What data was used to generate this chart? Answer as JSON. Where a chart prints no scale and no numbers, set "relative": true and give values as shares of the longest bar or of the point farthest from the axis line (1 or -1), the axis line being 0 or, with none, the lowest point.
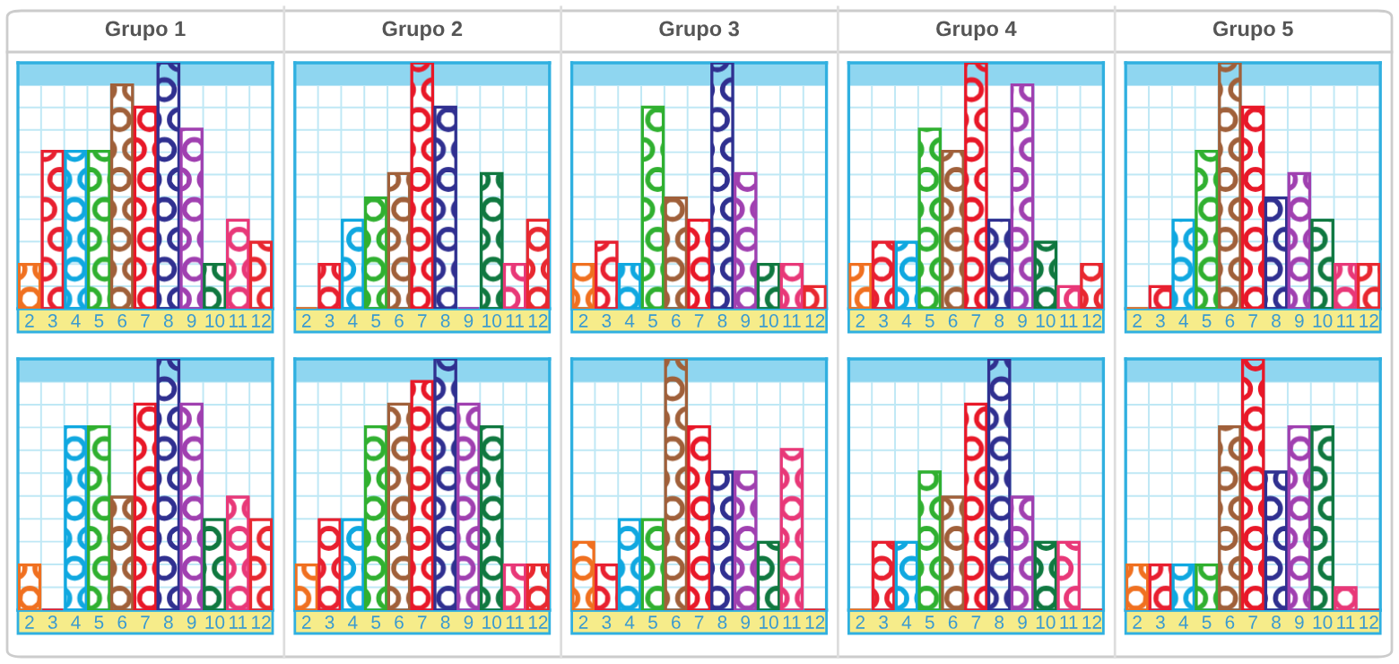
{
  "chart_data": [
    {
      "type": "bar",
      "relative": true,
      "title": "Grupo 1",
      "categories": [
        "2",
        "3",
        "4",
        "5",
        "6",
        "7",
        "8",
        "9",
        "10",
        "11",
        "12"
      ],
      "values": [
        0.18,
        0.64,
        0.64,
        0.64,
        0.91,
        0.82,
        1,
        0.73,
        0.18,
        0.36,
        0.27
      ],
      "colors": [
        "#f07020",
        "#e82030",
        "#10a8e0",
        "#30b030",
        "#a0603a",
        "#e81828",
        "#303090",
        "#a040b0",
        "#107840",
        "#e83878",
        "#e82830"
      ],
      "grid": true
    },
    {
      "type": "bar",
      "relative": true,
      "title": "Grupo 2",
      "categories": [
        "2",
        "3",
        "4",
        "5",
        "6",
        "7",
        "8",
        "9",
        "10",
        "11",
        "12"
      ],
      "values": [
        0,
        0.18,
        0.36,
        0.45,
        0.55,
        1,
        0.82,
        0,
        0.55,
        0.18,
        0.36
      ],
      "colors": [
        "#f07020",
        "#e82030",
        "#10a8e0",
        "#30b030",
        "#a0603a",
        "#e81828",
        "#303090",
        "#a040b0",
        "#107840",
        "#e83878",
        "#e82830"
      ],
      "grid": true
    },
    {
      "type": "bar",
      "relative": true,
      "title": "Grupo 3",
      "categories": [
        "2",
        "3",
        "4",
        "5",
        "6",
        "7",
        "8",
        "9",
        "10",
        "11",
        "12"
      ],
      "values": [
        0.18,
        0.27,
        0.18,
        0.82,
        0.45,
        0.36,
        1,
        0.55,
        0.18,
        0.18,
        0.09
      ],
      "colors": [
        "#f07020",
        "#e82030",
        "#10a8e0",
        "#30b030",
        "#a0603a",
        "#e81828",
        "#303090",
        "#a040b0",
        "#107840",
        "#e83878",
        "#e82830"
      ],
      "grid": true
    },
    {
      "type": "bar",
      "relative": true,
      "title": "Grupo 4",
      "categories": [
        "2",
        "3",
        "4",
        "5",
        "6",
        "7",
        "8",
        "9",
        "10",
        "11",
        "12"
      ],
      "values": [
        0.18,
        0.27,
        0.27,
        0.73,
        0.64,
        1,
        0.36,
        0.91,
        0.27,
        0.09,
        0.18
      ],
      "colors": [
        "#f07020",
        "#e82030",
        "#10a8e0",
        "#30b030",
        "#a0603a",
        "#e81828",
        "#303090",
        "#a040b0",
        "#107840",
        "#e83878",
        "#e82830"
      ],
      "grid": true
    },
    {
      "type": "bar",
      "relative": true,
      "title": "Grupo 5",
      "categories": [
        "2",
        "3",
        "4",
        "5",
        "6",
        "7",
        "8",
        "9",
        "10",
        "11",
        "12"
      ],
      "values": [
        0,
        0.09,
        0.36,
        0.64,
        1,
        0.82,
        0.45,
        0.55,
        0.36,
        0.18,
        0.18
      ],
      "colors": [
        "#f07020",
        "#e82030",
        "#10a8e0",
        "#30b030",
        "#a0603a",
        "#e81828",
        "#303090",
        "#a040b0",
        "#107840",
        "#e83878",
        "#e82830"
      ],
      "grid": true
    },
    {
      "type": "bar",
      "relative": true,
      "categories": [
        "2",
        "3",
        "4",
        "5",
        "6",
        "7",
        "8",
        "9",
        "10",
        "11",
        "12"
      ],
      "values": [
        0.18,
        0,
        0.73,
        0.73,
        0.45,
        0.82,
        1,
        0.82,
        0.36,
        0.45,
        0.36
      ],
      "colors": [
        "#f07020",
        "#e82030",
        "#10a8e0",
        "#30b030",
        "#a0603a",
        "#e81828",
        "#303090",
        "#a040b0",
        "#107840",
        "#e83878",
        "#e82830"
      ],
      "grid": true
    },
    {
      "type": "bar",
      "relative": true,
      "categories": [
        "2",
        "3",
        "4",
        "5",
        "6",
        "7",
        "8",
        "9",
        "10",
        "11",
        "12"
      ],
      "values": [
        0.18,
        0.36,
        0.36,
        0.73,
        0.82,
        0.91,
        1,
        0.82,
        0.73,
        0.18,
        0.18
      ],
      "colors": [
        "#f07020",
        "#e82030",
        "#10a8e0",
        "#30b030",
        "#a0603a",
        "#e81828",
        "#303090",
        "#a040b0",
        "#107840",
        "#e83878",
        "#e82830"
      ],
      "grid": true
    },
    {
      "type": "bar",
      "relative": true,
      "categories": [
        "2",
        "3",
        "4",
        "5",
        "6",
        "7",
        "8",
        "9",
        "10",
        "11",
        "12"
      ],
      "values": [
        0.27,
        0.18,
        0.36,
        0.36,
        1,
        0.73,
        0.55,
        0.55,
        0.27,
        0.64,
        0
      ],
      "colors": [
        "#f07020",
        "#e82030",
        "#10a8e0",
        "#30b030",
        "#a0603a",
        "#e81828",
        "#303090",
        "#a040b0",
        "#107840",
        "#e83878",
        "#e82830"
      ],
      "grid": true
    },
    {
      "type": "bar",
      "relative": true,
      "categories": [
        "2",
        "3",
        "4",
        "5",
        "6",
        "7",
        "8",
        "9",
        "10",
        "11",
        "12"
      ],
      "values": [
        0,
        0.27,
        0.27,
        0.55,
        0.45,
        0.82,
        1,
        0.45,
        0.27,
        0.27,
        0
      ],
      "colors": [
        "#f07020",
        "#e82030",
        "#10a8e0",
        "#30b030",
        "#a0603a",
        "#e81828",
        "#303090",
        "#a040b0",
        "#107840",
        "#e83878",
        "#e82830"
      ],
      "grid": true
    },
    {
      "type": "bar",
      "relative": true,
      "categories": [
        "2",
        "3",
        "4",
        "5",
        "6",
        "7",
        "8",
        "9",
        "10",
        "11",
        "12"
      ],
      "values": [
        0.18,
        0.18,
        0.18,
        0.18,
        0.73,
        1,
        0.55,
        0.73,
        0.73,
        0.09,
        0
      ],
      "colors": [
        "#f07020",
        "#e82030",
        "#10a8e0",
        "#30b030",
        "#a0603a",
        "#e81828",
        "#303090",
        "#a040b0",
        "#107840",
        "#e83878",
        "#e82830"
      ],
      "grid": true
    }
  ]
}
